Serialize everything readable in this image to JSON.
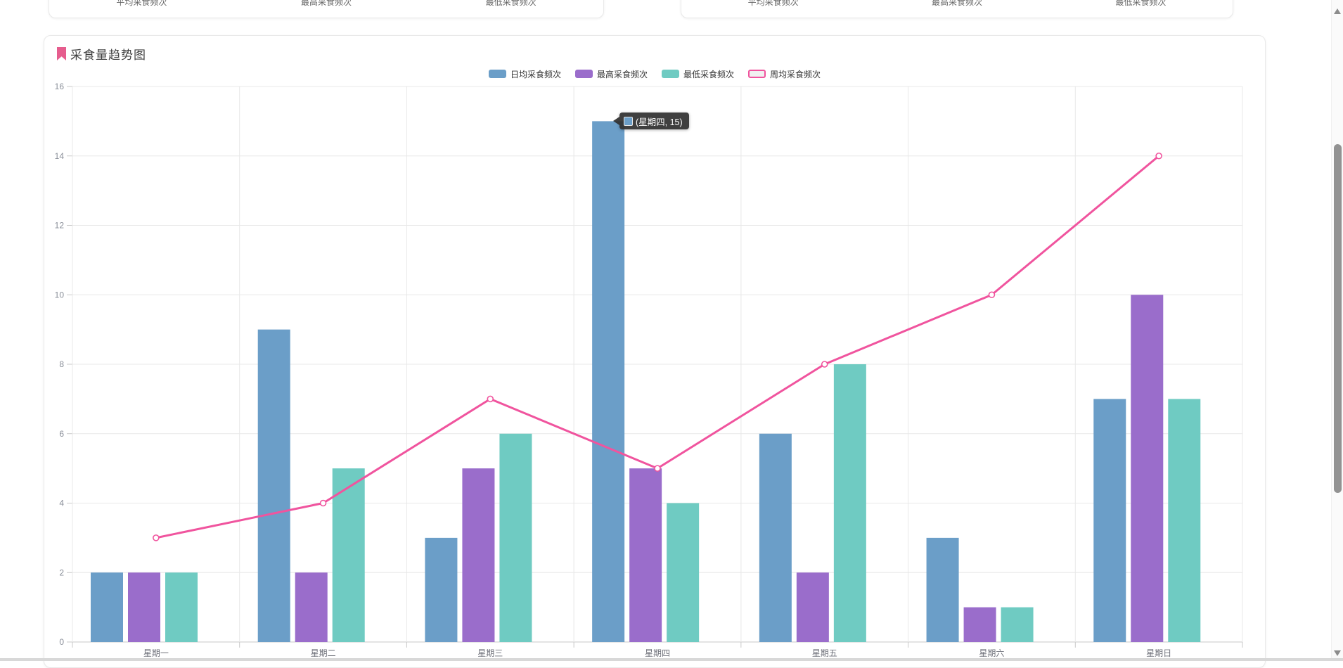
{
  "top_cards": {
    "left_stats": [
      "平均采食频次",
      "最高采食频次",
      "最低采食频次"
    ],
    "right_stats": [
      "平均采食频次",
      "最高采食频次",
      "最低采食频次"
    ]
  },
  "panel": {
    "title": "采食量趋势图"
  },
  "tooltip": {
    "text": "(星期四, 15)",
    "marker_color": "#6B9EC8"
  },
  "chart_data": {
    "type": "bar",
    "title": "采食量趋势图",
    "categories": [
      "星期一",
      "星期二",
      "星期三",
      "星期四",
      "星期五",
      "星期六",
      "星期日"
    ],
    "series": [
      {
        "name": "日均采食频次",
        "type": "bar",
        "color": "#6B9EC8",
        "values": [
          2,
          9,
          3,
          15,
          6,
          3,
          7
        ]
      },
      {
        "name": "最高采食频次",
        "type": "bar",
        "color": "#9A6DCB",
        "values": [
          2,
          2,
          5,
          5,
          2,
          1,
          10
        ]
      },
      {
        "name": "最低采食频次",
        "type": "bar",
        "color": "#6FCBC2",
        "values": [
          2,
          5,
          6,
          4,
          8,
          1,
          7
        ]
      },
      {
        "name": "周均采食频次",
        "type": "line",
        "color": "#F0549E",
        "values": [
          3,
          4,
          7,
          5,
          8,
          10,
          14
        ]
      }
    ],
    "xlabel": "",
    "ylabel": "",
    "ylim": [
      0,
      16
    ],
    "y_ticks": [
      0,
      2,
      4,
      6,
      8,
      10,
      12,
      14,
      16
    ],
    "grid": true,
    "legend_position": "top",
    "colors": {
      "grid_line": "#e8e8e8",
      "axis_line": "#c9c9c9",
      "tick_label": "#8a8f99",
      "category_label": "#6e7079"
    }
  }
}
